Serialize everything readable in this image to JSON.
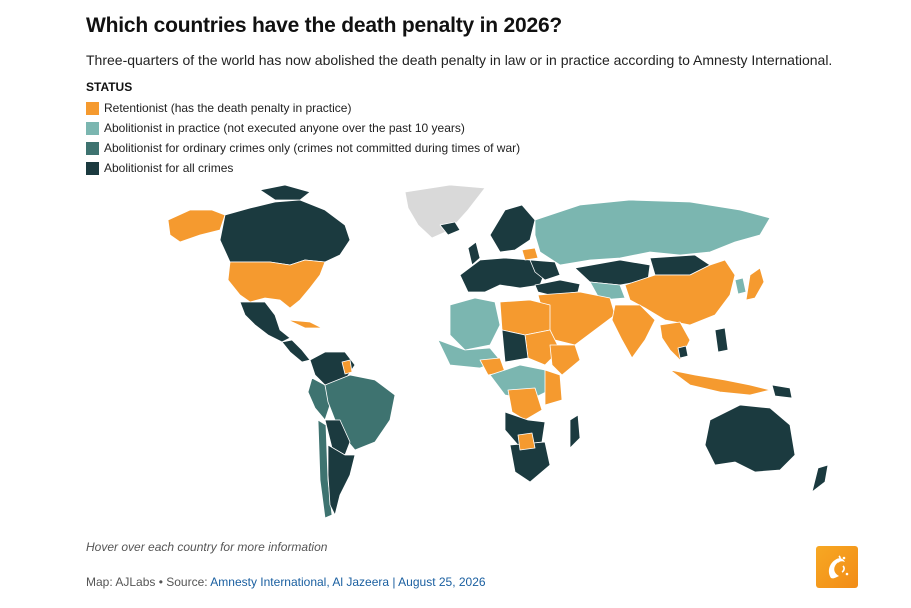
{
  "title": "Which countries have the death penalty in 2026?",
  "subtitle": "Three-quarters of the world has now abolished the death penalty in law or in practice according to Amnesty International.",
  "legend": {
    "heading": "STATUS",
    "items": [
      {
        "label": "Retentionist (has the death penalty in practice)",
        "color": "#f59a2f"
      },
      {
        "label": "Abolitionist in practice (not executed anyone over the past 10 years)",
        "color": "#7bb6b0"
      },
      {
        "label": "Abolitionist for ordinary crimes only (crimes not committed during times of war)",
        "color": "#3e7370"
      },
      {
        "label": "Abolitionist for all crimes",
        "color": "#1b3a3f"
      }
    ]
  },
  "colors": {
    "no_data": "#d9d9d9",
    "border": "#ffffff"
  },
  "hint": "Hover over each country for more information",
  "source": {
    "prefix": "Map: AJLabs • Source: ",
    "link": "Amnesty International, Al Jazeera | August 25, 2026"
  },
  "logo": {
    "icon": "al-jazeera-logo-icon"
  }
}
